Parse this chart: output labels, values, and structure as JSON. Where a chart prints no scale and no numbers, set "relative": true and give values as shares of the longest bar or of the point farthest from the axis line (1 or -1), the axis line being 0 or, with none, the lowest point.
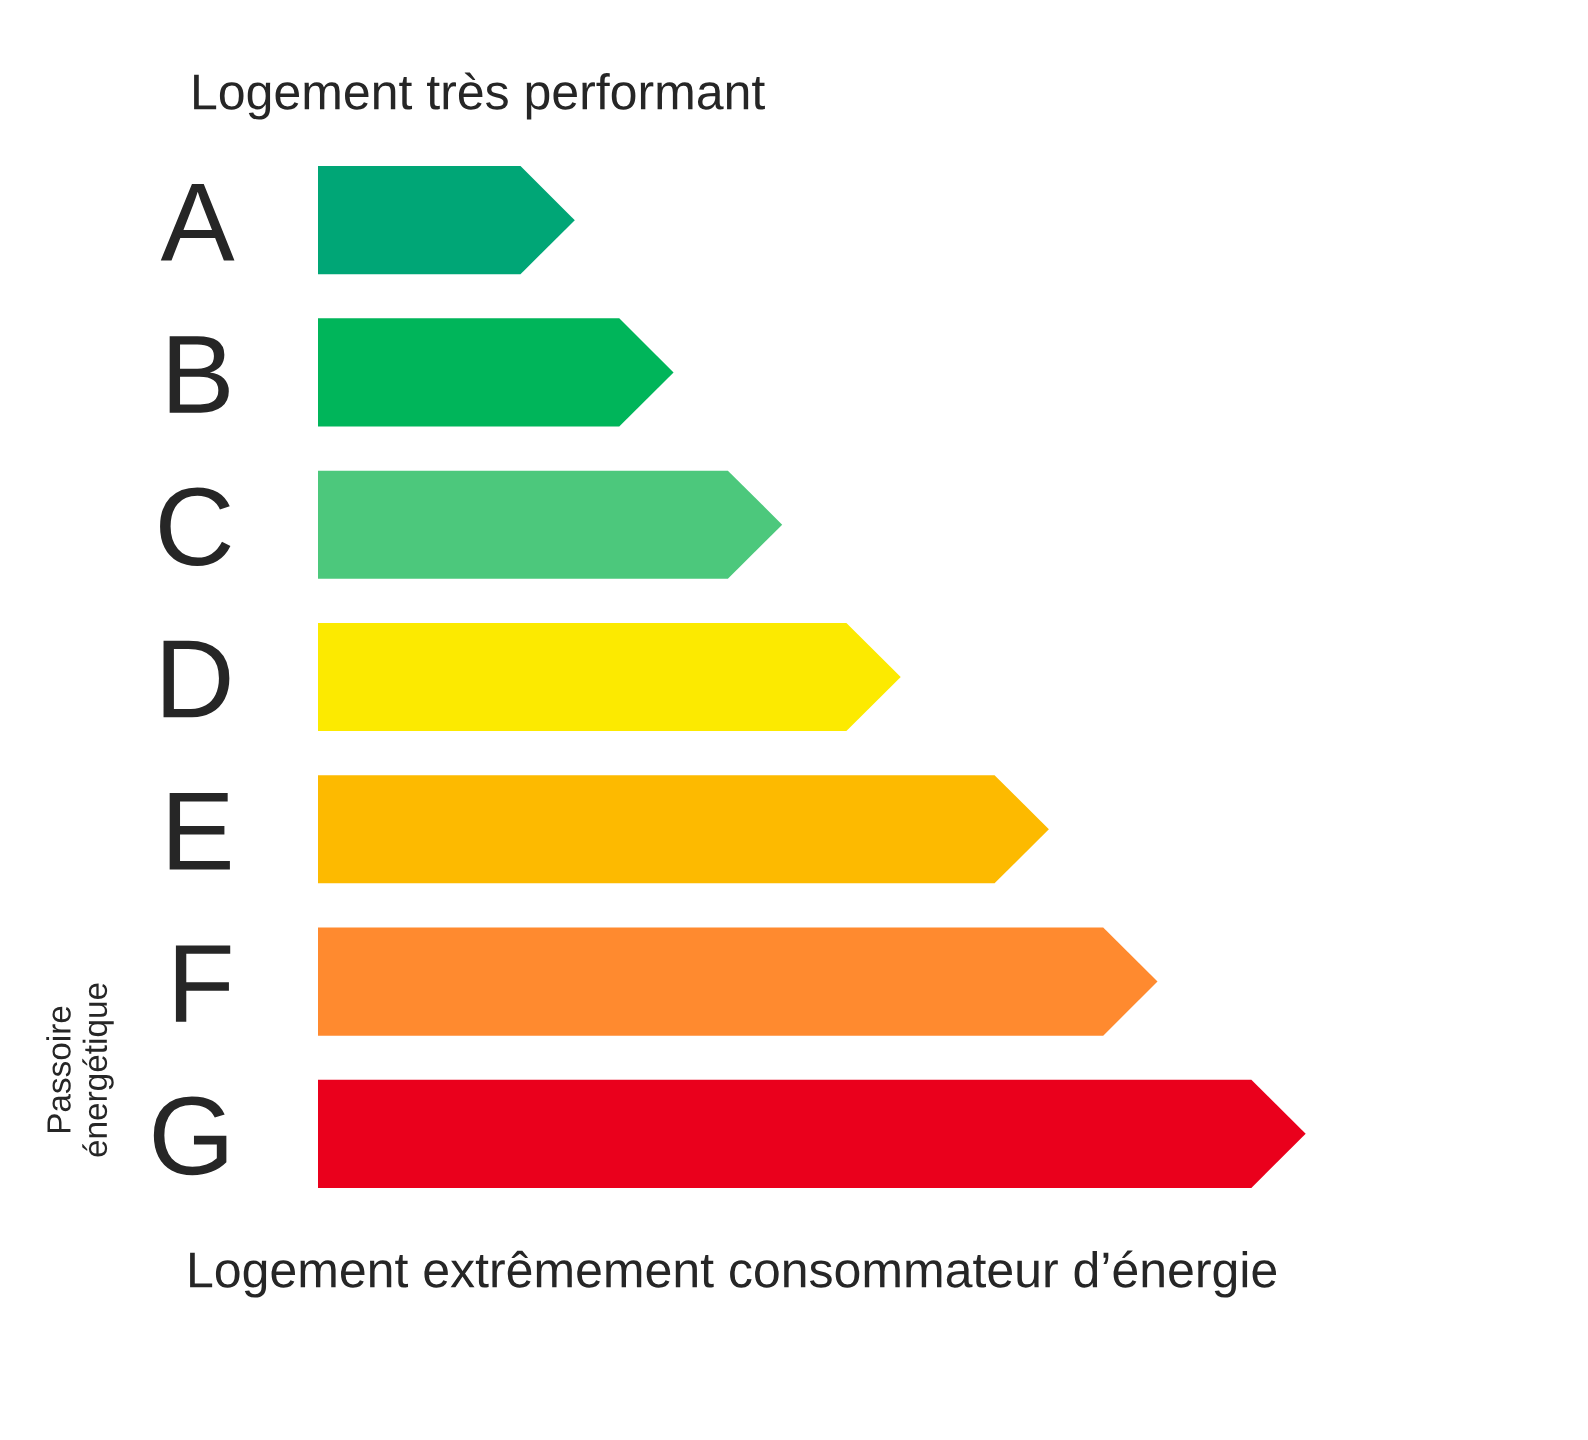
{
  "chart_data": {
    "type": "bar",
    "orientation": "horizontal",
    "relative": true,
    "title": "Logement très performant",
    "categories": [
      "A",
      "B",
      "C",
      "D",
      "E",
      "F",
      "G"
    ],
    "values": [
      0.26,
      0.36,
      0.47,
      0.59,
      0.74,
      0.85,
      1
    ],
    "colors": [
      "#00a676",
      "#00b55a",
      "#4cc87c",
      "#fcea00",
      "#fdba00",
      "#ff8a2f",
      "#ea001c"
    ],
    "annotations": [
      "Logement extrêmement consommateur d’énergie",
      "Passoire\nénergétique"
    ],
    "grid": false,
    "legend": false
  }
}
